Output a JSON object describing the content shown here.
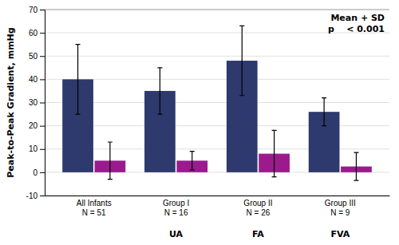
{
  "chart_data": {
    "type": "bar",
    "categories": [
      "All Infants\nN = 51",
      "Group I\nN = 16",
      "Group II\nN = 26",
      "Group III\nN = 9"
    ],
    "subcategories": [
      null,
      "UA",
      "FA",
      "FVA"
    ],
    "series": [
      {
        "color": "#2E3A6E",
        "values": [
          40,
          35,
          48,
          26
        ],
        "errors": [
          15,
          10,
          15,
          6
        ]
      },
      {
        "color": "#9B1B8E",
        "values": [
          5,
          5,
          8,
          2.5
        ],
        "errors": [
          8,
          4,
          10,
          6
        ]
      }
    ],
    "ylabel": "Peak-to-Peak Gradient, mmHg",
    "annotations": [
      "Mean + SD",
      "p    < 0.001"
    ],
    "ylim": [
      -10,
      70
    ],
    "yticks": [
      -10,
      0,
      10,
      20,
      30,
      40,
      50,
      60,
      70
    ],
    "grid": true
  }
}
